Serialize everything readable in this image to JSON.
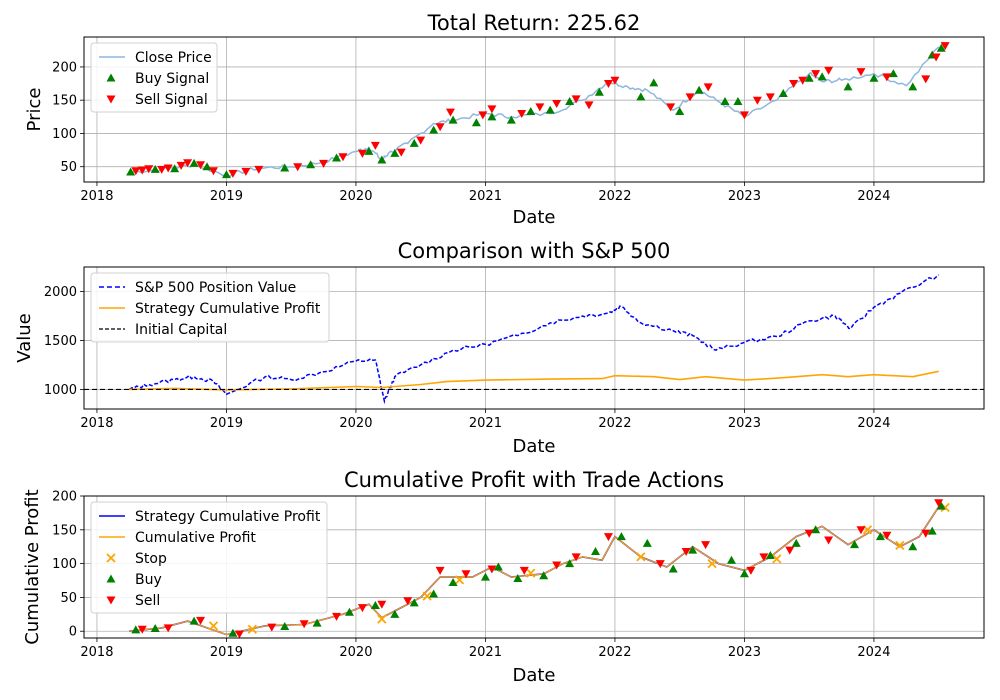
{
  "figure": {
    "width": 1000,
    "height": 700
  },
  "chart_data": [
    {
      "type": "line",
      "title": "Total Return: 225.62",
      "xlabel": "Date",
      "ylabel": "Price",
      "xlim": [
        2017.9,
        2024.85
      ],
      "ylim": [
        27,
        245
      ],
      "xticks": [
        2018,
        2019,
        2020,
        2021,
        2022,
        2023,
        2024
      ],
      "yticks": [
        50,
        100,
        150,
        200
      ],
      "grid": true,
      "legend_position": "upper-left",
      "legend": [
        "Close Price",
        "Buy Signal",
        "Sell Signal"
      ],
      "colors": {
        "close": "#8fb7dd",
        "buy": "#008000",
        "sell": "#ff0000"
      },
      "series": [
        {
          "name": "Close Price",
          "x": [
            2018.25,
            2018.5,
            2018.75,
            2019.0,
            2019.25,
            2019.5,
            2019.75,
            2020.0,
            2020.1,
            2020.2,
            2020.25,
            2020.4,
            2020.6,
            2020.75,
            2021.0,
            2021.2,
            2021.5,
            2021.75,
            2021.95,
            2022.1,
            2022.25,
            2022.45,
            2022.65,
            2022.8,
            2023.0,
            2023.25,
            2023.5,
            2023.6,
            2023.75,
            2024.0,
            2024.25,
            2024.5
          ],
          "y": [
            42,
            46,
            53,
            37,
            48,
            50,
            57,
            73,
            79,
            60,
            70,
            85,
            115,
            120,
            130,
            125,
            130,
            150,
            178,
            170,
            165,
            135,
            165,
            148,
            125,
            150,
            190,
            178,
            180,
            190,
            172,
            230
          ]
        },
        {
          "name": "Buy Signal",
          "x": [
            2018.26,
            2018.45,
            2018.6,
            2018.75,
            2018.85,
            2019.0,
            2019.45,
            2019.65,
            2019.85,
            2020.1,
            2020.2,
            2020.3,
            2020.45,
            2020.6,
            2020.75,
            2020.93,
            2021.05,
            2021.2,
            2021.35,
            2021.5,
            2021.65,
            2021.88,
            2022.2,
            2022.3,
            2022.5,
            2022.65,
            2022.85,
            2022.95,
            2023.3,
            2023.5,
            2023.6,
            2023.8,
            2024.0,
            2024.15,
            2024.3,
            2024.45,
            2024.52
          ],
          "y": [
            42,
            46,
            47,
            55,
            50,
            38,
            48,
            53,
            63,
            73,
            60,
            70,
            85,
            105,
            120,
            116,
            125,
            120,
            133,
            135,
            148,
            162,
            155,
            176,
            133,
            165,
            148,
            148,
            160,
            183,
            185,
            170,
            183,
            190,
            170,
            218,
            228
          ]
        },
        {
          "name": "Sell Signal",
          "x": [
            2018.3,
            2018.35,
            2018.4,
            2018.5,
            2018.55,
            2018.65,
            2018.7,
            2018.8,
            2018.9,
            2019.05,
            2019.15,
            2019.25,
            2019.55,
            2019.75,
            2019.9,
            2020.05,
            2020.15,
            2020.35,
            2020.5,
            2020.65,
            2020.73,
            2020.98,
            2021.05,
            2021.28,
            2021.42,
            2021.55,
            2021.7,
            2021.8,
            2021.95,
            2022.0,
            2022.43,
            2022.58,
            2022.72,
            2023.0,
            2023.1,
            2023.2,
            2023.38,
            2023.45,
            2023.55,
            2023.65,
            2023.9,
            2024.1,
            2024.4,
            2024.48,
            2024.55
          ],
          "y": [
            44,
            45,
            47,
            46,
            48,
            52,
            56,
            53,
            44,
            40,
            43,
            46,
            50,
            55,
            65,
            70,
            82,
            72,
            90,
            110,
            132,
            128,
            137,
            130,
            140,
            145,
            152,
            143,
            175,
            180,
            140,
            155,
            170,
            128,
            150,
            155,
            175,
            180,
            190,
            195,
            193,
            185,
            182,
            215,
            232
          ]
        }
      ]
    },
    {
      "type": "line",
      "title": "Comparison with S&P 500",
      "xlabel": "Date",
      "ylabel": "Value",
      "xlim": [
        2017.9,
        2024.85
      ],
      "ylim": [
        800,
        2250
      ],
      "xticks": [
        2018,
        2019,
        2020,
        2021,
        2022,
        2023,
        2024
      ],
      "yticks": [
        1000,
        1500,
        2000
      ],
      "grid": true,
      "legend_position": "upper-left",
      "legend": [
        "S&P 500 Position Value",
        "Strategy Cumulative Profit",
        "Initial Capital"
      ],
      "colors": {
        "sp500": "#0000ff",
        "strategy": "#ffa500",
        "initial": "#000000"
      },
      "series": [
        {
          "name": "S&P 500 Position Value",
          "x": [
            2018.25,
            2018.4,
            2018.6,
            2018.75,
            2018.9,
            2019.0,
            2019.3,
            2019.5,
            2019.75,
            2020.0,
            2020.15,
            2020.22,
            2020.3,
            2020.5,
            2020.75,
            2021.0,
            2021.25,
            2021.5,
            2021.75,
            2021.95,
            2022.05,
            2022.2,
            2022.45,
            2022.6,
            2022.78,
            2023.0,
            2023.25,
            2023.5,
            2023.7,
            2023.82,
            2024.0,
            2024.2,
            2024.5
          ],
          "y": [
            1000,
            1050,
            1100,
            1130,
            1080,
            950,
            1130,
            1100,
            1180,
            1290,
            1300,
            880,
            1130,
            1250,
            1400,
            1460,
            1550,
            1680,
            1750,
            1780,
            1850,
            1680,
            1600,
            1550,
            1400,
            1480,
            1540,
            1700,
            1750,
            1620,
            1840,
            1980,
            2170
          ]
        },
        {
          "name": "Strategy Cumulative Profit",
          "x": [
            2018.25,
            2018.6,
            2019.0,
            2019.5,
            2020.0,
            2020.2,
            2020.5,
            2020.7,
            2021.0,
            2021.5,
            2021.9,
            2022.0,
            2022.3,
            2022.5,
            2022.7,
            2023.0,
            2023.3,
            2023.6,
            2023.8,
            2024.0,
            2024.3,
            2024.5
          ],
          "y": [
            1000,
            1010,
            995,
            1005,
            1030,
            1020,
            1050,
            1080,
            1095,
            1105,
            1110,
            1140,
            1130,
            1100,
            1130,
            1095,
            1120,
            1150,
            1130,
            1150,
            1130,
            1185
          ]
        },
        {
          "name": "Initial Capital",
          "x": [
            2017.9,
            2024.85
          ],
          "y": [
            1000,
            1000
          ]
        }
      ]
    },
    {
      "type": "line",
      "title": "Cumulative Profit with Trade Actions",
      "xlabel": "Date",
      "ylabel": "Cumulative Profit",
      "xlim": [
        2017.9,
        2024.85
      ],
      "ylim": [
        -10,
        200
      ],
      "xticks": [
        2018,
        2019,
        2020,
        2021,
        2022,
        2023,
        2024
      ],
      "yticks": [
        0,
        50,
        100,
        150,
        200
      ],
      "grid": true,
      "legend_position": "upper-left",
      "legend": [
        "Strategy Cumulative Profit",
        "Cumulative Profit",
        "Stop",
        "Buy",
        "Sell"
      ],
      "colors": {
        "strategy": "#0000ff",
        "cumulative": "#ffa500",
        "stop": "#ffa500",
        "buy": "#008000",
        "sell": "#ff0000"
      },
      "series": [
        {
          "name": "Strategy Cumulative Profit",
          "x": [
            2018.25,
            2018.5,
            2018.7,
            2019.0,
            2019.3,
            2019.6,
            2019.9,
            2020.1,
            2020.2,
            2020.3,
            2020.5,
            2020.65,
            2020.9,
            2021.05,
            2021.2,
            2021.45,
            2021.6,
            2021.75,
            2021.9,
            2022.0,
            2022.2,
            2022.4,
            2022.6,
            2022.8,
            2023.0,
            2023.2,
            2023.4,
            2023.6,
            2023.8,
            2024.0,
            2024.2,
            2024.35,
            2024.52
          ],
          "y": [
            0,
            5,
            15,
            -5,
            8,
            10,
            25,
            40,
            20,
            30,
            50,
            80,
            80,
            95,
            80,
            85,
            100,
            110,
            105,
            140,
            110,
            95,
            125,
            100,
            90,
            110,
            140,
            155,
            128,
            150,
            125,
            140,
            190
          ]
        },
        {
          "name": "Cumulative Profit",
          "x": [
            2018.25,
            2018.5,
            2018.7,
            2019.0,
            2019.3,
            2019.6,
            2019.9,
            2020.1,
            2020.2,
            2020.3,
            2020.5,
            2020.65,
            2020.9,
            2021.05,
            2021.2,
            2021.45,
            2021.6,
            2021.75,
            2021.9,
            2022.0,
            2022.2,
            2022.4,
            2022.6,
            2022.8,
            2023.0,
            2023.2,
            2023.4,
            2023.6,
            2023.8,
            2024.0,
            2024.2,
            2024.35,
            2024.52
          ],
          "y": [
            0,
            5,
            15,
            -5,
            8,
            10,
            25,
            40,
            20,
            30,
            50,
            80,
            80,
            95,
            80,
            85,
            100,
            110,
            105,
            140,
            110,
            95,
            125,
            100,
            90,
            110,
            140,
            155,
            128,
            150,
            125,
            140,
            190
          ]
        },
        {
          "name": "Stop",
          "x": [
            2018.9,
            2019.2,
            2020.2,
            2020.55,
            2020.8,
            2021.35,
            2022.2,
            2022.75,
            2023.25,
            2023.95,
            2024.2,
            2024.55
          ],
          "y": [
            8,
            3,
            18,
            52,
            76,
            86,
            110,
            100,
            107,
            150,
            127,
            183
          ]
        },
        {
          "name": "Buy",
          "x": [
            2018.3,
            2018.45,
            2018.75,
            2019.05,
            2019.45,
            2019.7,
            2019.95,
            2020.15,
            2020.3,
            2020.45,
            2020.6,
            2020.75,
            2021.0,
            2021.1,
            2021.25,
            2021.45,
            2021.65,
            2021.85,
            2022.05,
            2022.25,
            2022.45,
            2022.6,
            2022.9,
            2023.0,
            2023.2,
            2023.4,
            2023.55,
            2023.85,
            2024.05,
            2024.3,
            2024.45,
            2024.52
          ],
          "y": [
            2,
            4,
            15,
            -3,
            7,
            12,
            28,
            38,
            25,
            42,
            55,
            72,
            80,
            95,
            78,
            82,
            100,
            118,
            140,
            130,
            92,
            120,
            105,
            85,
            112,
            130,
            150,
            128,
            140,
            125,
            148,
            185
          ]
        },
        {
          "name": "Sell",
          "x": [
            2018.35,
            2018.55,
            2018.8,
            2019.1,
            2019.35,
            2019.6,
            2019.85,
            2020.05,
            2020.2,
            2020.4,
            2020.65,
            2020.85,
            2021.05,
            2021.3,
            2021.55,
            2021.7,
            2021.95,
            2022.35,
            2022.55,
            2022.7,
            2023.05,
            2023.15,
            2023.35,
            2023.5,
            2023.65,
            2023.9,
            2024.1,
            2024.4,
            2024.5
          ],
          "y": [
            3,
            5,
            16,
            -4,
            6,
            11,
            22,
            35,
            40,
            45,
            90,
            85,
            92,
            90,
            98,
            110,
            140,
            100,
            118,
            128,
            90,
            110,
            120,
            145,
            135,
            150,
            142,
            145,
            190
          ]
        }
      ]
    }
  ]
}
